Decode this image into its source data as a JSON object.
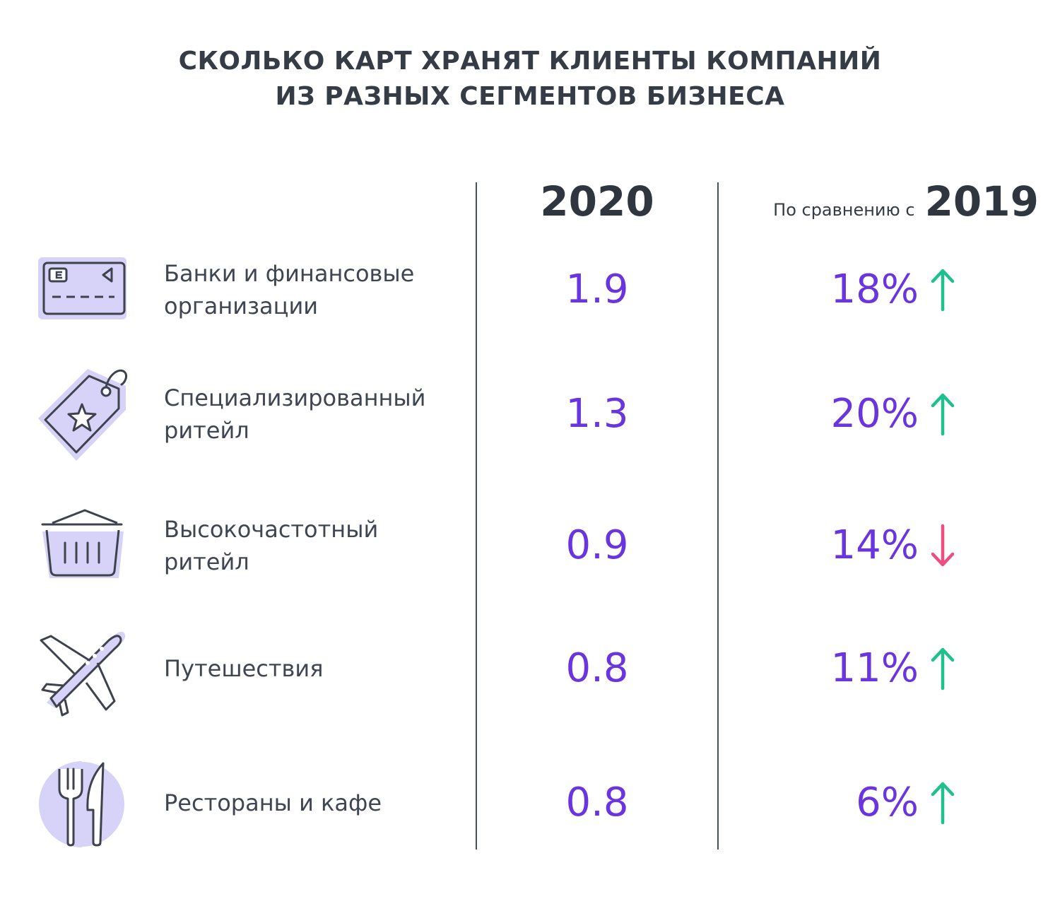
{
  "title": {
    "line1": "СКОЛЬКО КАРТ ХРАНЯТ КЛИЕНТЫ КОМПАНИЙ",
    "line2": "ИЗ РАЗНЫХ СЕГМЕНТОВ БИЗНЕСА"
  },
  "headers": {
    "year": "2020",
    "compare_label": "По сравнению с",
    "compare_year": "2019"
  },
  "colors": {
    "value": "#6a35e0",
    "up": "#1fc08e",
    "down": "#ee4d7f",
    "icon_fill": "#d7d2f8",
    "icon_stroke": "#3d424c"
  },
  "chart_data": {
    "type": "table",
    "title": "СКОЛЬКО КАРТ ХРАНЯТ КЛИЕНТЫ КОМПАНИЙ ИЗ РАЗНЫХ СЕГМЕНТОВ БИЗНЕСА",
    "columns": [
      "2020",
      "По сравнению с 2019"
    ],
    "rows": [
      {
        "icon": "credit-card-icon",
        "label_lines": [
          "Банки и финансовые",
          "организации"
        ],
        "value": "1.9",
        "change": "18%",
        "direction": "up"
      },
      {
        "icon": "price-tag-star-icon",
        "label_lines": [
          "Специализированный",
          "ритейл"
        ],
        "value": "1.3",
        "change": "20%",
        "direction": "up"
      },
      {
        "icon": "shopping-basket-icon",
        "label_lines": [
          "Высокочастотный",
          "ритейл"
        ],
        "value": "0.9",
        "change": "14%",
        "direction": "down"
      },
      {
        "icon": "airplane-icon",
        "label_lines": [
          "Путешествия"
        ],
        "value": "0.8",
        "change": "11%",
        "direction": "up"
      },
      {
        "icon": "fork-knife-icon",
        "label_lines": [
          "Рестораны и кафе"
        ],
        "value": "0.8",
        "change": "6%",
        "direction": "up"
      }
    ]
  }
}
